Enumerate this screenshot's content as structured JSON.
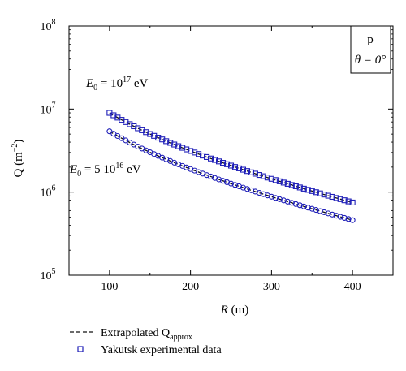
{
  "chart_data": {
    "type": "scatter",
    "x_scale": "linear",
    "y_scale": "log",
    "xlim": [
      50,
      450
    ],
    "ylim": [
      100000,
      100000000
    ],
    "x_ticks": [
      100,
      200,
      300,
      400
    ],
    "y_tick_exponents": [
      5,
      6,
      7,
      8
    ],
    "xlabel": {
      "var": "R",
      "unit": " (m)"
    },
    "ylabel": {
      "base": "Q (m",
      "sup": "−2",
      "close": ")"
    },
    "y_tick_base": "10",
    "panel_label": {
      "particle": "p",
      "angle": "θ = 0°"
    },
    "curve_labels": [
      {
        "id": "e17",
        "var": "E",
        "sub": "0",
        "eq": " = 10",
        "sup": "17",
        "unit": " eV"
      },
      {
        "id": "e16",
        "var": "E",
        "sub": "0",
        "eq": " = 5 10",
        "sup": "16",
        "unit": " eV"
      }
    ],
    "series": [
      {
        "id": "e17",
        "x_range": [
          100,
          400
        ],
        "y_start": 9000000,
        "y_end": 750000,
        "markers": "square"
      },
      {
        "id": "e16",
        "x_range": [
          100,
          400
        ],
        "y_start": 5400000,
        "y_end": 460000,
        "markers": "circle"
      }
    ],
    "legend": {
      "placement": "bottom-left",
      "entries": [
        {
          "style": "dashed-line",
          "text": "Extrapolated Q",
          "sub": "approx"
        },
        {
          "style": "square-marker",
          "text": "Yakutsk experimental data"
        }
      ]
    },
    "colors": {
      "marker": "#1f1fb8",
      "line": "#111111",
      "axis": "#000000"
    }
  }
}
